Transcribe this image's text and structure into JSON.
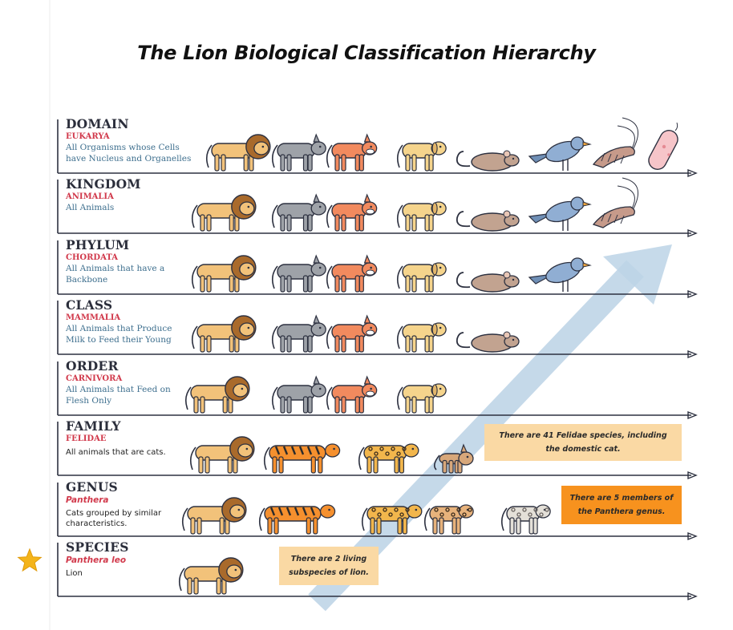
{
  "title": "The Lion Biological Classification Hierarchy",
  "colors": {
    "axis": "#2d3140",
    "rank": "#2b2e3b",
    "taxon": "#d1394b",
    "description": "#3e6f8e",
    "arrow": "#bcd3e6",
    "note_light": "#fad9a4",
    "note_orange": "#f7921e",
    "star": "#f4b41a"
  },
  "levels": [
    {
      "rank": "DOMAIN",
      "taxon": "EUKARYA",
      "description": [
        "All Organisms whose Cells",
        "have Nucleus and Organelles"
      ],
      "animals": [
        "lion-icon",
        "wolf-icon",
        "fox-icon",
        "dog-icon",
        "rat-icon",
        "bird-icon",
        "shrimp-icon",
        "bacterium-icon"
      ]
    },
    {
      "rank": "KINGDOM",
      "taxon": "ANIMALIA",
      "description": [
        "All Animals"
      ],
      "animals": [
        "lion-icon",
        "wolf-icon",
        "fox-icon",
        "dog-icon",
        "rat-icon",
        "bird-icon",
        "shrimp-icon"
      ]
    },
    {
      "rank": "PHYLUM",
      "taxon": "CHORDATA",
      "description": [
        "All Animals that have a",
        "Backbone"
      ],
      "animals": [
        "lion-icon",
        "wolf-icon",
        "fox-icon",
        "dog-icon",
        "rat-icon",
        "bird-icon"
      ]
    },
    {
      "rank": "CLASS",
      "taxon": "MAMMALIA",
      "description": [
        "All Animals that Produce",
        "Milk to Feed their Young"
      ],
      "animals": [
        "lion-icon",
        "wolf-icon",
        "fox-icon",
        "dog-icon",
        "rat-icon"
      ]
    },
    {
      "rank": "ORDER",
      "taxon": "CARNIVORA",
      "description": [
        "All Animals that Feed on",
        "Flesh Only"
      ],
      "animals": [
        "lion-icon",
        "wolf-icon",
        "fox-icon",
        "dog-icon"
      ]
    },
    {
      "rank": "FAMILY",
      "taxon": "FELIDAE",
      "description": [
        "All animals that are cats."
      ],
      "animals": [
        "lion-icon",
        "tiger-icon",
        "leopard-icon",
        "lynx-icon"
      ],
      "note": {
        "text": "There are 41 Felidae species, including the domestic cat.",
        "style": "light"
      }
    },
    {
      "rank": "GENUS",
      "taxon": "Panthera",
      "description": [
        "Cats grouped by similar",
        "characteristics."
      ],
      "animals": [
        "lion-icon",
        "tiger-icon",
        "leopard-icon",
        "jaguar-icon",
        "snow-leopard-icon"
      ],
      "note": {
        "text": "There are 5 members of the Panthera genus.",
        "style": "orange"
      }
    },
    {
      "rank": "SPECIES",
      "taxon": "Panthera leo",
      "description": [
        "Lion"
      ],
      "animals": [
        "lion-icon"
      ],
      "note": {
        "text": "There are 2 living subspecies of lion.",
        "style": "light"
      }
    }
  ]
}
